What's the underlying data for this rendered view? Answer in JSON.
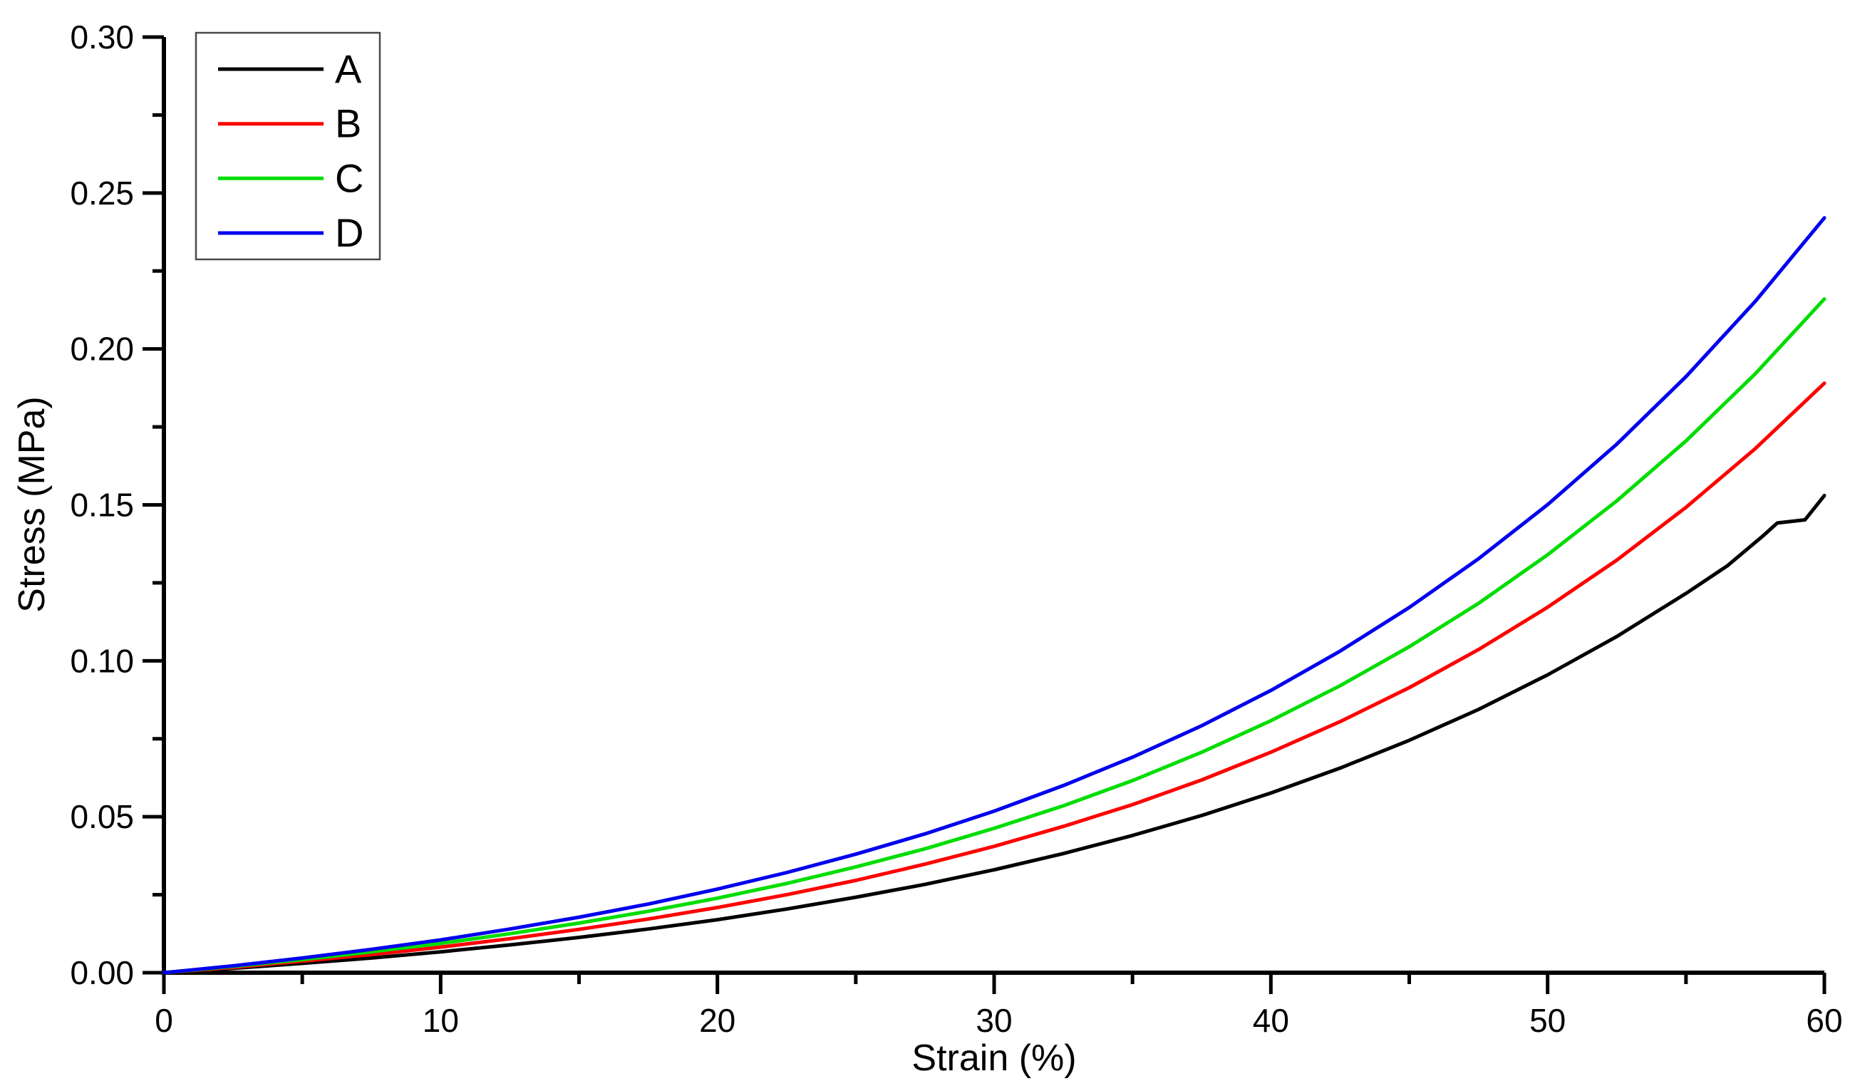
{
  "chart_data": {
    "type": "line",
    "title": "",
    "xlabel": "Strain (%)",
    "ylabel": "Stress (MPa)",
    "xlim": [
      0,
      60
    ],
    "ylim": [
      0,
      0.3
    ],
    "grid": false,
    "x_major_ticks": [
      0,
      10,
      20,
      30,
      40,
      50,
      60
    ],
    "x_tick_labels": [
      "0",
      "10",
      "20",
      "30",
      "40",
      "50",
      "60"
    ],
    "x_minor_ticks": [
      5,
      15,
      25,
      35,
      45,
      55
    ],
    "y_major_ticks": [
      0,
      0.05,
      0.1,
      0.15,
      0.2,
      0.25,
      0.3
    ],
    "y_tick_labels": [
      "0.00",
      "0.05",
      "0.10",
      "0.15",
      "0.20",
      "0.25",
      "0.30"
    ],
    "y_minor_ticks": [
      0.025,
      0.075,
      0.125,
      0.175,
      0.225,
      0.275
    ],
    "legend_position": "top-left",
    "legend_entries": [
      {
        "label": "A",
        "color": "#000000"
      },
      {
        "label": "B",
        "color": "#ff0000"
      },
      {
        "label": "C",
        "color": "#00dd00"
      },
      {
        "label": "D",
        "color": "#0000ee"
      }
    ],
    "series": [
      {
        "name": "A",
        "color": "#000000",
        "x": [
          0,
          2.5,
          5,
          7.5,
          10,
          12.5,
          15,
          17.5,
          20,
          22.5,
          25,
          27.5,
          30,
          32.5,
          35,
          37.5,
          40,
          42.5,
          45,
          47.5,
          50,
          52.5,
          55,
          56.5,
          57.8,
          58.3,
          59.3,
          60
        ],
        "y": [
          0,
          0.0014,
          0.003,
          0.0047,
          0.0067,
          0.0089,
          0.0113,
          0.014,
          0.017,
          0.0204,
          0.0242,
          0.0283,
          0.033,
          0.0382,
          0.044,
          0.0504,
          0.0576,
          0.0656,
          0.0745,
          0.0844,
          0.0955,
          0.1078,
          0.1216,
          0.1305,
          0.1402,
          0.1442,
          0.1452,
          0.153
        ]
      },
      {
        "name": "B",
        "color": "#ff0000",
        "x": [
          0,
          2.5,
          5,
          7.5,
          10,
          12.5,
          15,
          17.5,
          20,
          22.5,
          25,
          27.5,
          30,
          32.5,
          35,
          37.5,
          40,
          42.5,
          45,
          47.5,
          50,
          52.5,
          55,
          57.5,
          60
        ],
        "y": [
          0,
          0.0017,
          0.0037,
          0.0058,
          0.0082,
          0.0109,
          0.0139,
          0.0172,
          0.0209,
          0.025,
          0.0296,
          0.0348,
          0.0405,
          0.0469,
          0.0539,
          0.0618,
          0.0707,
          0.0805,
          0.0914,
          0.1036,
          0.1172,
          0.1323,
          0.1492,
          0.168,
          0.189
        ]
      },
      {
        "name": "C",
        "color": "#00dd00",
        "x": [
          0,
          2.5,
          5,
          7.5,
          10,
          12.5,
          15,
          17.5,
          20,
          22.5,
          25,
          27.5,
          30,
          32.5,
          35,
          37.5,
          40,
          42.5,
          45,
          47.5,
          50,
          52.5,
          55,
          57.5,
          60
        ],
        "y": [
          0,
          0.002,
          0.0042,
          0.0067,
          0.0094,
          0.0125,
          0.0159,
          0.0197,
          0.0239,
          0.0286,
          0.0339,
          0.0397,
          0.0463,
          0.0535,
          0.0616,
          0.0707,
          0.0808,
          0.092,
          0.1045,
          0.1184,
          0.134,
          0.1513,
          0.1705,
          0.192,
          0.216
        ]
      },
      {
        "name": "D",
        "color": "#0000ee",
        "x": [
          0,
          2.5,
          5,
          7.5,
          10,
          12.5,
          15,
          17.5,
          20,
          22.5,
          25,
          27.5,
          30,
          32.5,
          35,
          37.5,
          40,
          42.5,
          45,
          47.5,
          50,
          52.5,
          55,
          57.5,
          60
        ],
        "y": [
          0,
          0.0022,
          0.0047,
          0.0075,
          0.0105,
          0.014,
          0.0178,
          0.022,
          0.0268,
          0.0321,
          0.038,
          0.0445,
          0.0518,
          0.06,
          0.0691,
          0.0792,
          0.0905,
          0.1031,
          0.1171,
          0.1327,
          0.1501,
          0.1695,
          0.1911,
          0.2152,
          0.242
        ]
      }
    ]
  }
}
